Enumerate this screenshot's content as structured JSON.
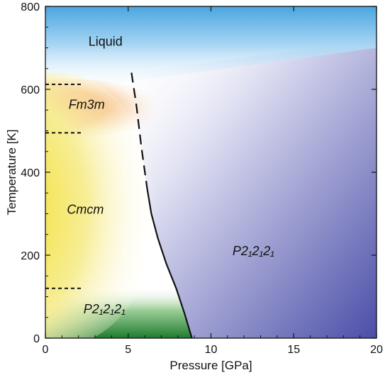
{
  "chart_data": {
    "type": "phase-diagram",
    "xlabel": "Pressure [GPa]",
    "ylabel": "Temperature [K]",
    "xlim": [
      0,
      20
    ],
    "ylim": [
      0,
      800
    ],
    "xticks": [
      0,
      5,
      10,
      15,
      20
    ],
    "yticks": [
      0,
      200,
      400,
      600,
      800
    ],
    "regions": [
      {
        "id": "liquid",
        "label": "Liquid",
        "italic": false,
        "x": 2.6,
        "y": 705,
        "color": "#6fb8e6"
      },
      {
        "id": "fm3m",
        "label": "Fm3m",
        "italic": true,
        "x": 1.4,
        "y": 553,
        "color": "#ef8a2a"
      },
      {
        "id": "cmcm",
        "label": "Cmcm",
        "italic": true,
        "x": 1.3,
        "y": 300,
        "color": "#f2e02e"
      },
      {
        "id": "p212121-low",
        "label": "P2₁2₁2₁",
        "italic": true,
        "x": 2.3,
        "y": 60,
        "color": "#2e8e36"
      },
      {
        "id": "p212121-high",
        "label": "P2₁2₁2₁",
        "italic": true,
        "x": 11.3,
        "y": 200,
        "color": "#5d60b4"
      }
    ],
    "boundary_solid": [
      [
        6.15,
        360
      ],
      [
        6.4,
        300
      ],
      [
        6.8,
        240
      ],
      [
        7.3,
        180
      ],
      [
        7.9,
        120
      ],
      [
        8.4,
        60
      ],
      [
        8.85,
        0
      ]
    ],
    "boundary_dashed": [
      [
        5.2,
        640
      ],
      [
        5.5,
        560
      ],
      [
        5.8,
        460
      ],
      [
        6.15,
        360
      ]
    ],
    "dashed_levels": [
      {
        "y": 612,
        "x_end": 2.2
      },
      {
        "y": 495,
        "x_end": 2.2
      },
      {
        "y": 120,
        "x_end": 2.2
      }
    ]
  }
}
